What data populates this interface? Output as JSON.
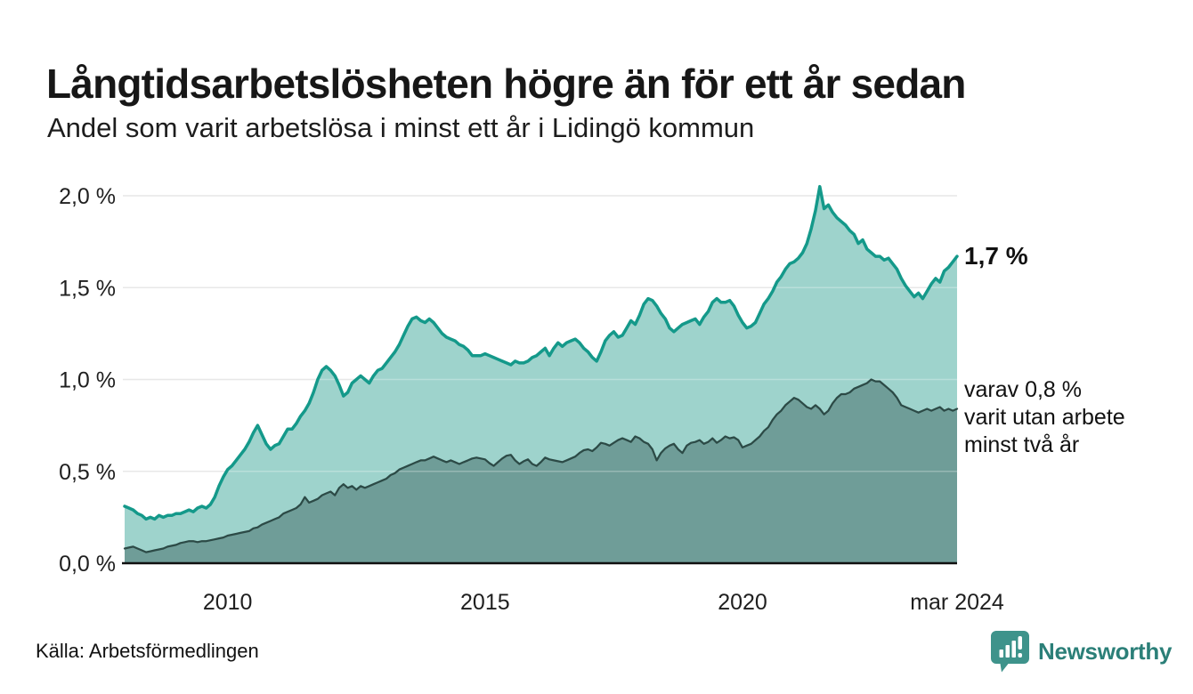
{
  "header": {
    "title": "Långtidsarbetslösheten högre än för ett år sedan",
    "subtitle": "Andel som varit arbetslösa i minst ett år i Lidingö kommun"
  },
  "chart_data": {
    "type": "area",
    "title": "Långtidsarbetslösheten högre än för ett år sedan",
    "subtitle": "Andel som varit arbetslösa i minst ett år i Lidingö kommun",
    "x_range": {
      "start_year": 2008,
      "start_month": 1,
      "end_year": 2024,
      "end_month": 3,
      "points": 195
    },
    "ylim": [
      0,
      2.07
    ],
    "grid": true,
    "yticks": [
      {
        "value": 0.0,
        "label": "0,0 %"
      },
      {
        "value": 0.5,
        "label": "0,5 %"
      },
      {
        "value": 1.0,
        "label": "1,0 %"
      },
      {
        "value": 1.5,
        "label": "1,5 %"
      },
      {
        "value": 2.0,
        "label": "2,0 %"
      }
    ],
    "xticks": [
      {
        "year": 2010.0,
        "label": "2010"
      },
      {
        "year": 2015.0,
        "label": "2015"
      },
      {
        "year": 2020.0,
        "label": "2020"
      },
      {
        "year": 2024.167,
        "label": "mar 2024"
      }
    ],
    "series": [
      {
        "name": "Andel arbetslösa minst ett år",
        "line_color": "#14998a",
        "fill_color": "#9ed3cc",
        "line_width": 3.5,
        "values": [
          0.31,
          0.3,
          0.29,
          0.27,
          0.26,
          0.24,
          0.25,
          0.24,
          0.26,
          0.25,
          0.26,
          0.26,
          0.27,
          0.27,
          0.28,
          0.29,
          0.28,
          0.3,
          0.31,
          0.3,
          0.32,
          0.36,
          0.42,
          0.47,
          0.51,
          0.53,
          0.56,
          0.59,
          0.62,
          0.66,
          0.71,
          0.75,
          0.7,
          0.65,
          0.62,
          0.64,
          0.65,
          0.69,
          0.73,
          0.73,
          0.76,
          0.8,
          0.83,
          0.87,
          0.93,
          1.0,
          1.05,
          1.07,
          1.05,
          1.02,
          0.97,
          0.91,
          0.93,
          0.98,
          1.0,
          1.02,
          1.0,
          0.98,
          1.02,
          1.05,
          1.06,
          1.09,
          1.12,
          1.15,
          1.19,
          1.24,
          1.29,
          1.33,
          1.34,
          1.32,
          1.31,
          1.33,
          1.31,
          1.28,
          1.25,
          1.23,
          1.22,
          1.21,
          1.19,
          1.18,
          1.16,
          1.13,
          1.13,
          1.13,
          1.14,
          1.13,
          1.12,
          1.11,
          1.1,
          1.09,
          1.08,
          1.1,
          1.09,
          1.09,
          1.1,
          1.12,
          1.13,
          1.15,
          1.17,
          1.13,
          1.17,
          1.2,
          1.18,
          1.2,
          1.21,
          1.22,
          1.2,
          1.17,
          1.15,
          1.12,
          1.1,
          1.15,
          1.21,
          1.24,
          1.26,
          1.23,
          1.24,
          1.28,
          1.32,
          1.3,
          1.35,
          1.41,
          1.44,
          1.43,
          1.4,
          1.36,
          1.33,
          1.28,
          1.26,
          1.28,
          1.3,
          1.31,
          1.32,
          1.33,
          1.3,
          1.34,
          1.37,
          1.42,
          1.44,
          1.42,
          1.42,
          1.43,
          1.4,
          1.35,
          1.31,
          1.28,
          1.29,
          1.31,
          1.36,
          1.41,
          1.44,
          1.48,
          1.53,
          1.56,
          1.6,
          1.63,
          1.64,
          1.66,
          1.69,
          1.74,
          1.82,
          1.92,
          2.05,
          1.93,
          1.95,
          1.91,
          1.88,
          1.86,
          1.84,
          1.81,
          1.79,
          1.74,
          1.76,
          1.71,
          1.69,
          1.67,
          1.67,
          1.65,
          1.66,
          1.63,
          1.6,
          1.55,
          1.51,
          1.48,
          1.45,
          1.47,
          1.44,
          1.48,
          1.52,
          1.55,
          1.53,
          1.59,
          1.61,
          1.64,
          1.67
        ]
      },
      {
        "name": "Varav utan arbete minst två år",
        "line_color": "#2c4a46",
        "fill_color": "#6f9d98",
        "line_width": 2.25,
        "values": [
          0.08,
          0.085,
          0.09,
          0.08,
          0.07,
          0.06,
          0.065,
          0.07,
          0.075,
          0.08,
          0.09,
          0.095,
          0.1,
          0.11,
          0.115,
          0.12,
          0.12,
          0.115,
          0.12,
          0.12,
          0.125,
          0.13,
          0.135,
          0.14,
          0.15,
          0.155,
          0.16,
          0.165,
          0.17,
          0.175,
          0.19,
          0.195,
          0.21,
          0.22,
          0.23,
          0.24,
          0.25,
          0.27,
          0.28,
          0.29,
          0.3,
          0.32,
          0.36,
          0.33,
          0.34,
          0.35,
          0.37,
          0.38,
          0.39,
          0.37,
          0.41,
          0.43,
          0.41,
          0.42,
          0.4,
          0.42,
          0.41,
          0.42,
          0.43,
          0.44,
          0.45,
          0.46,
          0.48,
          0.49,
          0.51,
          0.52,
          0.53,
          0.54,
          0.55,
          0.56,
          0.56,
          0.57,
          0.58,
          0.57,
          0.56,
          0.55,
          0.56,
          0.55,
          0.54,
          0.55,
          0.56,
          0.57,
          0.575,
          0.57,
          0.565,
          0.545,
          0.53,
          0.55,
          0.57,
          0.585,
          0.59,
          0.56,
          0.54,
          0.555,
          0.565,
          0.54,
          0.53,
          0.55,
          0.575,
          0.565,
          0.56,
          0.555,
          0.55,
          0.56,
          0.57,
          0.58,
          0.6,
          0.615,
          0.62,
          0.61,
          0.63,
          0.655,
          0.65,
          0.64,
          0.655,
          0.67,
          0.68,
          0.67,
          0.66,
          0.69,
          0.68,
          0.66,
          0.65,
          0.62,
          0.56,
          0.6,
          0.625,
          0.64,
          0.65,
          0.62,
          0.6,
          0.64,
          0.655,
          0.66,
          0.67,
          0.65,
          0.66,
          0.68,
          0.655,
          0.67,
          0.69,
          0.68,
          0.685,
          0.67,
          0.63,
          0.64,
          0.65,
          0.67,
          0.69,
          0.72,
          0.74,
          0.78,
          0.81,
          0.83,
          0.86,
          0.88,
          0.9,
          0.89,
          0.87,
          0.85,
          0.84,
          0.86,
          0.84,
          0.81,
          0.83,
          0.87,
          0.9,
          0.92,
          0.92,
          0.93,
          0.95,
          0.96,
          0.97,
          0.98,
          1.0,
          0.99,
          0.99,
          0.97,
          0.95,
          0.93,
          0.9,
          0.86,
          0.85,
          0.84,
          0.83,
          0.82,
          0.83,
          0.84,
          0.83,
          0.84,
          0.85,
          0.83,
          0.84,
          0.83,
          0.84
        ]
      }
    ],
    "annotations": {
      "total_label": "1,7 %",
      "sub_label_lines": [
        "varav 0,8 %",
        "varit utan arbete",
        "minst två år"
      ]
    },
    "colors": {
      "gridline": "#e0e0e0",
      "axis": "#101010",
      "tick_text": "#1f1f1f"
    }
  },
  "footer": {
    "source": "Källa: Arbetsförmedlingen",
    "brand_name": "Newsworthy",
    "brand_color": "#3e938b"
  }
}
